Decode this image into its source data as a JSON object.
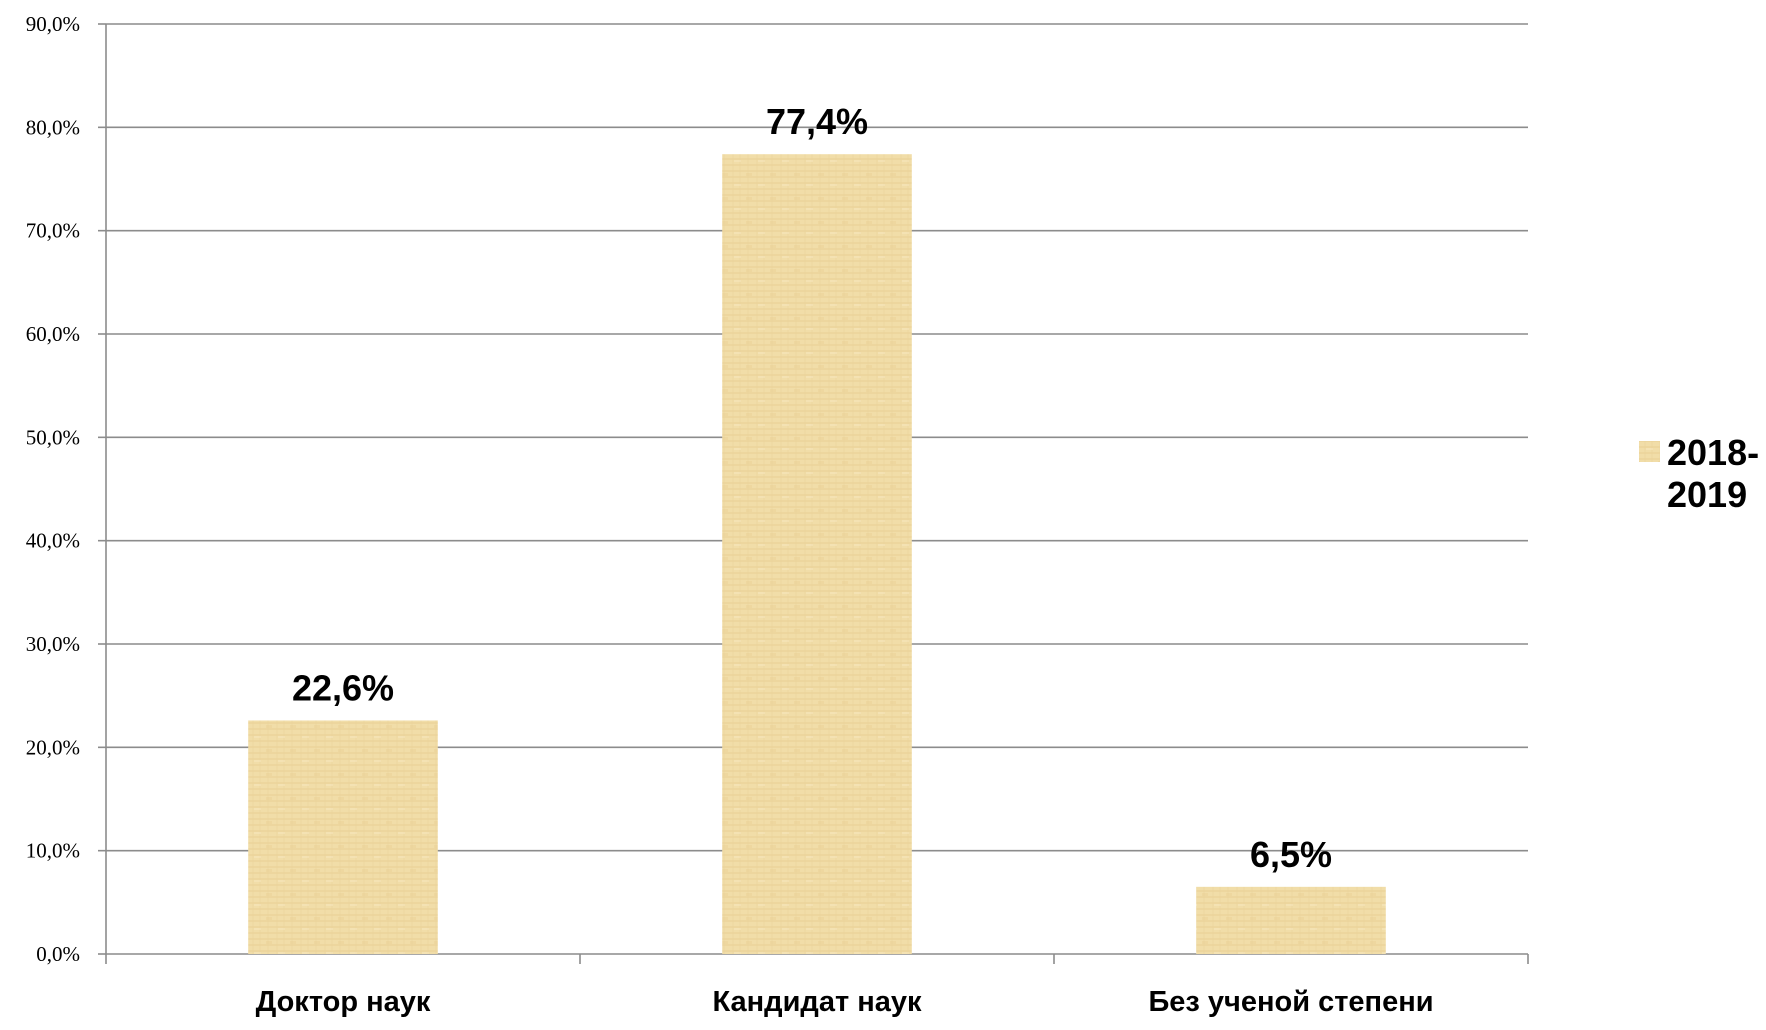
{
  "chart_data": {
    "type": "bar",
    "categories": [
      "Доктор наук",
      "Кандидат наук",
      "Без ученой степени"
    ],
    "series": [
      {
        "name": "2018-2019",
        "values": [
          22.6,
          77.4,
          6.5
        ],
        "data_labels": [
          "22,6%",
          "77,4%",
          "6,5%"
        ],
        "color": "#F0DCA6"
      }
    ],
    "ylim": [
      0,
      90
    ],
    "yticks": [
      0,
      10,
      20,
      30,
      40,
      50,
      60,
      70,
      80,
      90
    ],
    "ytick_labels": [
      "0,0%",
      "10,0%",
      "20,0%",
      "30,0%",
      "40,0%",
      "50,0%",
      "60,0%",
      "70,0%",
      "80,0%",
      "90,0%"
    ],
    "grid": true,
    "gridline_color": "#8C8C8C",
    "legend": {
      "position": "right",
      "label_lines": [
        "2018-",
        "2019"
      ]
    },
    "title": "",
    "xlabel": "",
    "ylabel": ""
  }
}
